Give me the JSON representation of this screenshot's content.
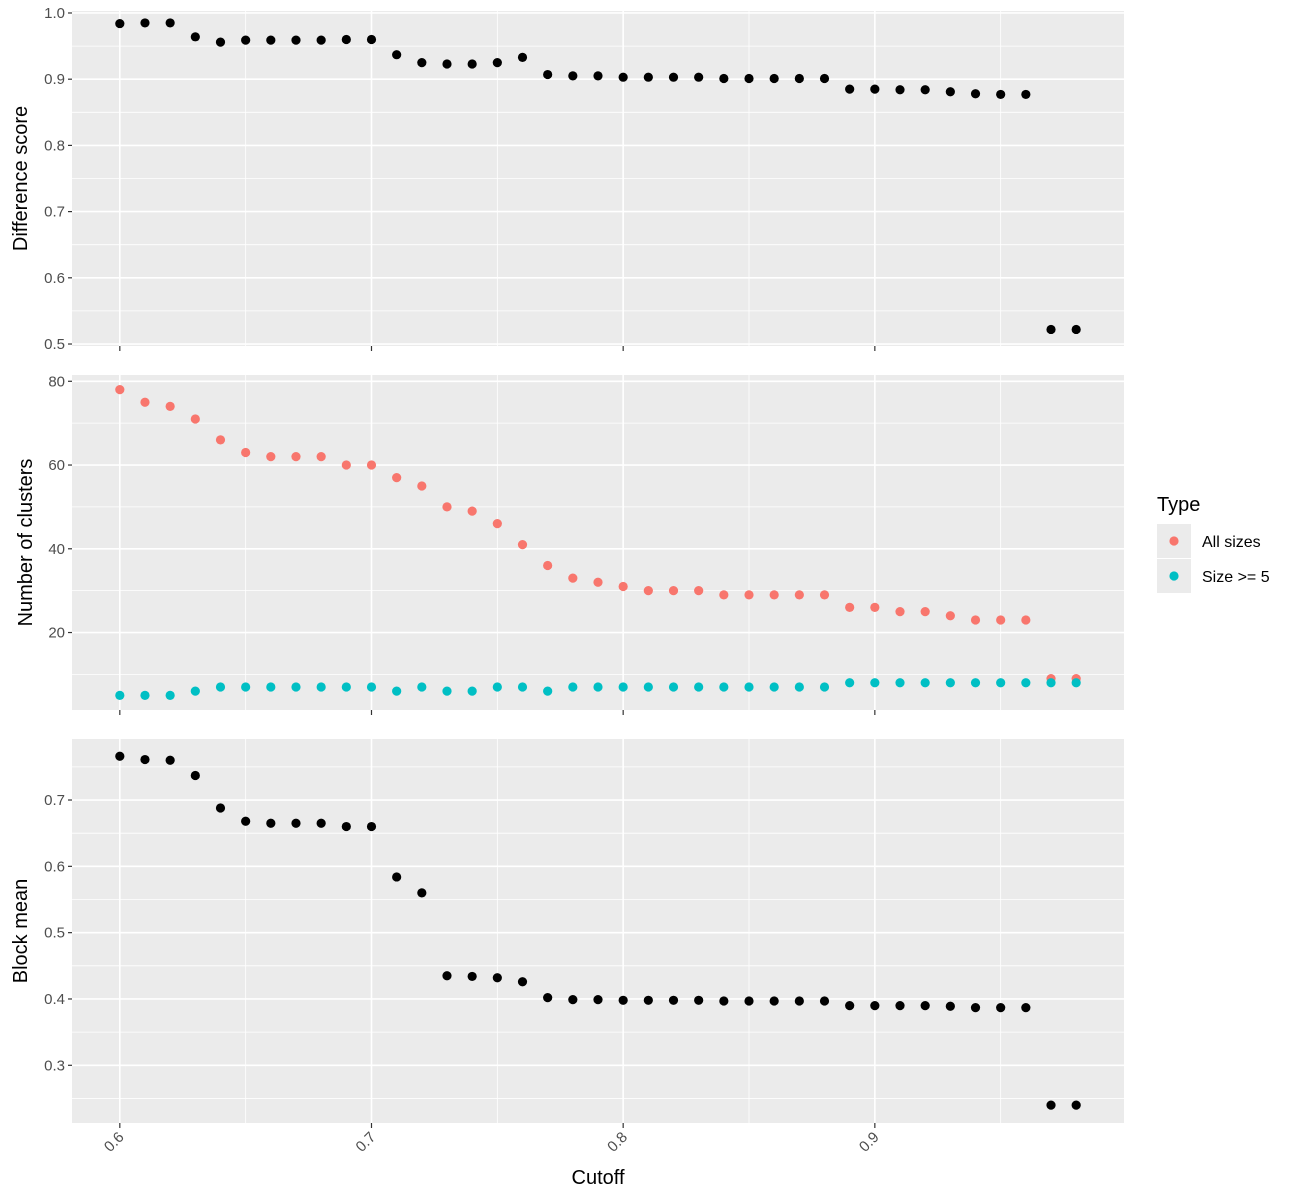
{
  "chart_data": {
    "type": "scatter",
    "layout": "stacked-facets",
    "shared_x": true,
    "xlabel": "Cutoff",
    "x_ticks": [
      0.6,
      0.7,
      0.8,
      0.9
    ],
    "x_tick_labels": [
      "0.6",
      "0.7",
      "0.8",
      "0.9"
    ],
    "xlim": [
      0.581,
      0.999
    ],
    "x": [
      0.6,
      0.61,
      0.62,
      0.63,
      0.64,
      0.65,
      0.66,
      0.67,
      0.68,
      0.69,
      0.7,
      0.71,
      0.72,
      0.73,
      0.74,
      0.75,
      0.76,
      0.77,
      0.78,
      0.79,
      0.8,
      0.81,
      0.82,
      0.83,
      0.84,
      0.85,
      0.86,
      0.87,
      0.88,
      0.89,
      0.9,
      0.91,
      0.92,
      0.93,
      0.94,
      0.95,
      0.96,
      0.97,
      0.98
    ],
    "panels": [
      {
        "ylabel": "Difference score",
        "ylim": [
          0.497,
          1.003
        ],
        "y_ticks": [
          0.5,
          0.6,
          0.7,
          0.8,
          0.9,
          1.0
        ],
        "y_tick_labels": [
          "0.5",
          "0.6",
          "0.7",
          "0.8",
          "0.9",
          "1.0"
        ],
        "series": [
          {
            "color": "#000000",
            "values": [
              0.984,
              0.985,
              0.985,
              0.964,
              0.956,
              0.959,
              0.959,
              0.959,
              0.959,
              0.96,
              0.96,
              0.937,
              0.925,
              0.923,
              0.923,
              0.925,
              0.933,
              0.907,
              0.905,
              0.905,
              0.903,
              0.903,
              0.903,
              0.903,
              0.901,
              0.901,
              0.901,
              0.901,
              0.901,
              0.885,
              0.885,
              0.884,
              0.884,
              0.881,
              0.878,
              0.877,
              0.877,
              0.522,
              0.522
            ]
          }
        ]
      },
      {
        "ylabel": "Number of clusters",
        "ylim": [
          1.5,
          81.5
        ],
        "y_ticks": [
          20,
          40,
          60,
          80
        ],
        "y_tick_labels": [
          "20",
          "40",
          "60",
          "80"
        ],
        "series": [
          {
            "name": "All sizes",
            "color": "#F8766D",
            "values": [
              78,
              75,
              74,
              71,
              66,
              63,
              62,
              62,
              62,
              60,
              60,
              57,
              55,
              50,
              49,
              46,
              41,
              36,
              33,
              32,
              31,
              30,
              30,
              30,
              29,
              29,
              29,
              29,
              29,
              26,
              26,
              25,
              25,
              24,
              23,
              23,
              23,
              9,
              9
            ]
          },
          {
            "name": "Size >= 5",
            "color": "#00BFC4",
            "values": [
              5,
              5,
              5,
              6,
              7,
              7,
              7,
              7,
              7,
              7,
              7,
              6,
              7,
              6,
              6,
              7,
              7,
              6,
              7,
              7,
              7,
              7,
              7,
              7,
              7,
              7,
              7,
              7,
              7,
              8,
              8,
              8,
              8,
              8,
              8,
              8,
              8,
              8,
              8
            ]
          }
        ]
      },
      {
        "ylabel": "Block mean",
        "ylim": [
          0.213,
          0.792
        ],
        "y_ticks": [
          0.3,
          0.4,
          0.5,
          0.6,
          0.7
        ],
        "y_tick_labels": [
          "0.3",
          "0.4",
          "0.5",
          "0.6",
          "0.7"
        ],
        "series": [
          {
            "color": "#000000",
            "values": [
              0.766,
              0.761,
              0.76,
              0.737,
              0.688,
              0.668,
              0.665,
              0.665,
              0.665,
              0.66,
              0.66,
              0.584,
              0.56,
              0.435,
              0.434,
              0.432,
              0.426,
              0.402,
              0.399,
              0.399,
              0.398,
              0.398,
              0.398,
              0.398,
              0.397,
              0.397,
              0.397,
              0.397,
              0.397,
              0.39,
              0.39,
              0.39,
              0.39,
              0.389,
              0.387,
              0.387,
              0.387,
              0.24,
              0.24
            ]
          }
        ]
      }
    ],
    "legend": {
      "title": "Type",
      "placement": "right",
      "entries": [
        {
          "label": "All sizes",
          "color": "#F8766D"
        },
        {
          "label": "Size >= 5",
          "color": "#00BFC4"
        }
      ]
    },
    "grid": true
  }
}
